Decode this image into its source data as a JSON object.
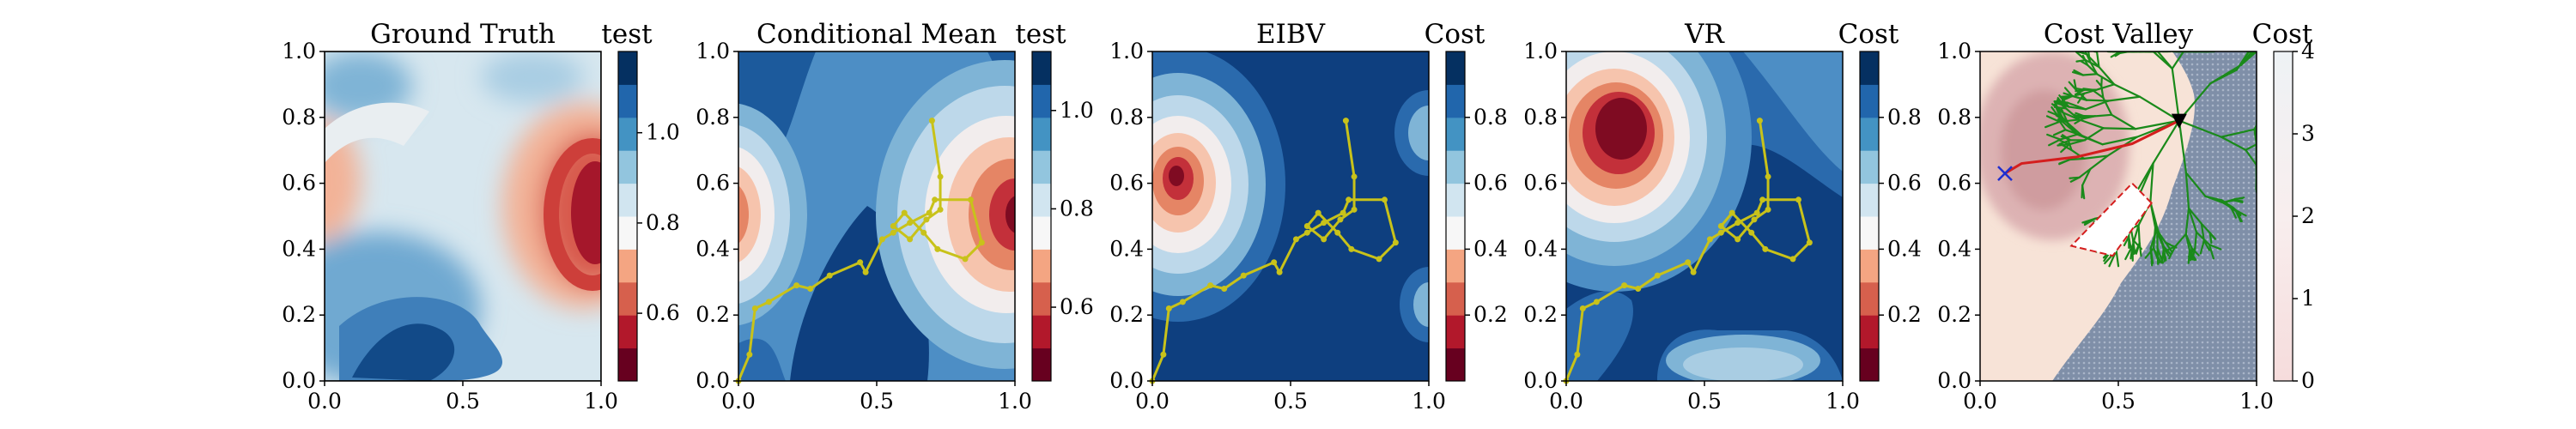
{
  "chart_data": [
    {
      "type": "heatmap",
      "title": "Ground Truth",
      "colorbar_label": "test",
      "xlim": [
        0,
        1
      ],
      "ylim": [
        0,
        1
      ],
      "xticks": [
        "0.0",
        "0.5",
        "1.0"
      ],
      "yticks": [
        "0.0",
        "0.2",
        "0.4",
        "0.6",
        "0.8",
        "1.0"
      ],
      "colorbar_range": [
        0.45,
        1.18
      ],
      "colorbar_ticks": [
        "0.6",
        "0.8",
        "1.0"
      ]
    },
    {
      "type": "heatmap",
      "title": "Conditional Mean",
      "colorbar_label": "test",
      "xlim": [
        0,
        1
      ],
      "ylim": [
        0,
        1
      ],
      "xticks": [
        "0.0",
        "0.5",
        "1.0"
      ],
      "yticks": [
        "0.0",
        "0.2",
        "0.4",
        "0.6",
        "0.8",
        "1.0"
      ],
      "colorbar_range": [
        0.45,
        1.12
      ],
      "colorbar_ticks": [
        "0.6",
        "0.8",
        "1.0"
      ],
      "path": {
        "x": [
          0.0,
          0.04,
          0.06,
          0.11,
          0.21,
          0.26,
          0.33,
          0.44,
          0.46,
          0.52,
          0.56,
          0.62,
          0.69,
          0.71,
          0.84,
          0.88,
          0.82,
          0.72,
          0.67,
          0.6,
          0.56,
          0.62,
          0.68,
          0.73,
          0.73,
          0.7
        ],
        "y": [
          0.0,
          0.08,
          0.22,
          0.24,
          0.29,
          0.28,
          0.32,
          0.36,
          0.33,
          0.43,
          0.45,
          0.48,
          0.51,
          0.55,
          0.55,
          0.42,
          0.37,
          0.4,
          0.45,
          0.51,
          0.47,
          0.43,
          0.49,
          0.52,
          0.62,
          0.79
        ]
      }
    },
    {
      "type": "heatmap",
      "title": "EIBV",
      "colorbar_label": "Cost",
      "xlim": [
        0,
        1
      ],
      "ylim": [
        0,
        1
      ],
      "xticks": [
        "0.0",
        "0.5",
        "1.0"
      ],
      "yticks": [
        "0.0",
        "0.2",
        "0.4",
        "0.6",
        "0.8",
        "1.0"
      ],
      "colorbar_range": [
        0.0,
        1.0
      ],
      "colorbar_ticks": [
        "0.2",
        "0.4",
        "0.6",
        "0.8"
      ],
      "path": {
        "x": [
          0.0,
          0.04,
          0.06,
          0.11,
          0.21,
          0.26,
          0.33,
          0.44,
          0.46,
          0.52,
          0.56,
          0.62,
          0.69,
          0.71,
          0.84,
          0.88,
          0.82,
          0.72,
          0.67,
          0.6,
          0.56,
          0.62,
          0.68,
          0.73,
          0.73,
          0.7
        ],
        "y": [
          0.0,
          0.08,
          0.22,
          0.24,
          0.29,
          0.28,
          0.32,
          0.36,
          0.33,
          0.43,
          0.45,
          0.48,
          0.51,
          0.55,
          0.55,
          0.42,
          0.37,
          0.4,
          0.45,
          0.51,
          0.47,
          0.43,
          0.49,
          0.52,
          0.62,
          0.79
        ]
      }
    },
    {
      "type": "heatmap",
      "title": "VR",
      "colorbar_label": "Cost",
      "xlim": [
        0,
        1
      ],
      "ylim": [
        0,
        1
      ],
      "xticks": [
        "0.0",
        "0.5",
        "1.0"
      ],
      "yticks": [
        "0.0",
        "0.2",
        "0.4",
        "0.6",
        "0.8",
        "1.0"
      ],
      "colorbar_range": [
        0.0,
        1.0
      ],
      "colorbar_ticks": [
        "0.2",
        "0.4",
        "0.6",
        "0.8"
      ],
      "path": {
        "x": [
          0.0,
          0.04,
          0.06,
          0.11,
          0.21,
          0.26,
          0.33,
          0.44,
          0.46,
          0.52,
          0.56,
          0.62,
          0.69,
          0.71,
          0.84,
          0.88,
          0.82,
          0.72,
          0.67,
          0.6,
          0.56,
          0.62,
          0.68,
          0.73,
          0.73,
          0.7
        ],
        "y": [
          0.0,
          0.08,
          0.22,
          0.24,
          0.29,
          0.28,
          0.32,
          0.36,
          0.33,
          0.43,
          0.45,
          0.48,
          0.51,
          0.55,
          0.55,
          0.42,
          0.37,
          0.4,
          0.45,
          0.51,
          0.47,
          0.43,
          0.49,
          0.52,
          0.62,
          0.79
        ]
      }
    },
    {
      "type": "heatmap",
      "title": "Cost Valley",
      "colorbar_label": "Cost",
      "xlim": [
        0,
        1
      ],
      "ylim": [
        0,
        1
      ],
      "xticks": [
        "0.0",
        "0.5",
        "1.0"
      ],
      "yticks": [
        "0.0",
        "0.2",
        "0.4",
        "0.6",
        "0.8",
        "1.0"
      ],
      "colorbar_range": [
        0,
        4
      ],
      "colorbar_ticks": [
        "0",
        "1",
        "2",
        "3",
        "4"
      ],
      "start_marker": {
        "x": 0.72,
        "y": 0.79
      },
      "target_marker": {
        "x": 0.09,
        "y": 0.63
      },
      "route": {
        "x": [
          0.72,
          0.55,
          0.35,
          0.15,
          0.09
        ],
        "y": [
          0.79,
          0.72,
          0.68,
          0.66,
          0.63
        ]
      },
      "obstacle": {
        "x": [
          0.62,
          0.55,
          0.33,
          0.48,
          0.62
        ],
        "y": [
          0.54,
          0.6,
          0.41,
          0.38,
          0.54
        ]
      }
    }
  ]
}
